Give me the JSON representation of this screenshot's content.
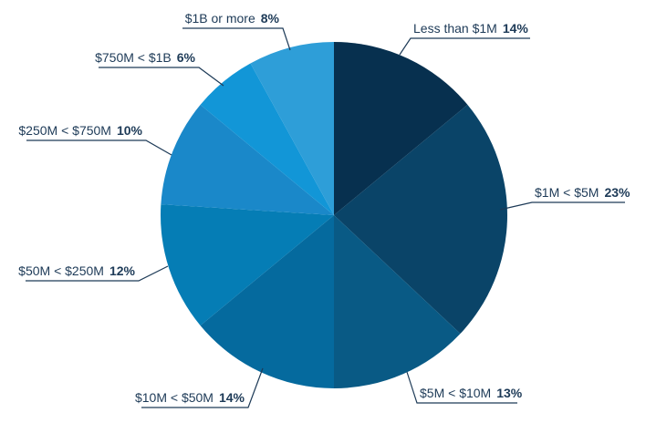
{
  "chart_data": {
    "type": "pie",
    "title": "",
    "slices": [
      {
        "label": "Less than $1M",
        "value": 14,
        "display": "14%",
        "color": "#07304f"
      },
      {
        "label": "$1M < $5M",
        "value": 23,
        "display": "23%",
        "color": "#0a4468"
      },
      {
        "label": "$5M < $10M",
        "value": 13,
        "display": "13%",
        "color": "#095a85"
      },
      {
        "label": "$10M < $50M",
        "value": 14,
        "display": "14%",
        "color": "#056a9e"
      },
      {
        "label": "$50M < $250M",
        "value": 12,
        "display": "12%",
        "color": "#057db5"
      },
      {
        "label": "$250M < $750M",
        "value": 10,
        "display": "10%",
        "color": "#1a88c9"
      },
      {
        "label": "$750M < $1B",
        "value": 6,
        "display": "6%",
        "color": "#1296d7"
      },
      {
        "label": "$1B or more",
        "value": 8,
        "display": "8%",
        "color": "#2e9ed8"
      }
    ]
  }
}
